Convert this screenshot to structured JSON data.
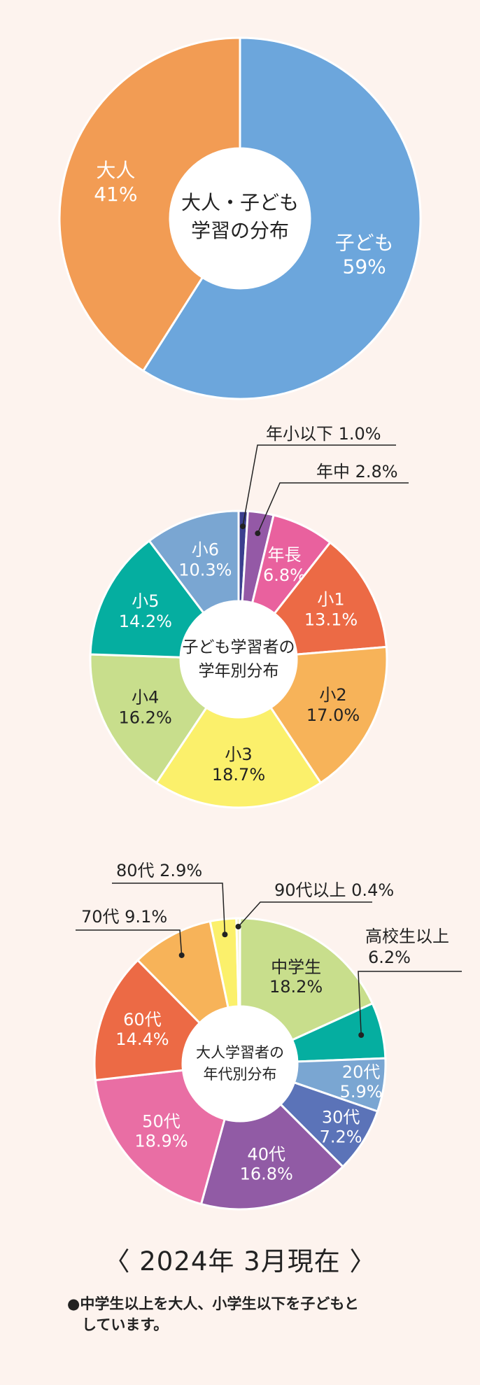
{
  "chart_data": [
    {
      "type": "pie",
      "title": "大人・子ども 学習の分布",
      "title_lines": [
        "大人・子ども",
        "学習の分布"
      ],
      "slices": [
        {
          "label": "子ども",
          "value": 59,
          "value_text": "59%",
          "color": "#6ca6dc"
        },
        {
          "label": "大人",
          "value": 41,
          "value_text": "41%",
          "color": "#f29c54"
        }
      ]
    },
    {
      "type": "pie",
      "title": "子ども学習者の 学年別分布",
      "title_lines": [
        "子ども学習者の",
        "学年別分布"
      ],
      "slices": [
        {
          "label": "年小以下",
          "value": 1.0,
          "value_text": "1.0%",
          "color": "#3b3f8f"
        },
        {
          "label": "年中",
          "value": 2.8,
          "value_text": "2.8%",
          "color": "#9459a6"
        },
        {
          "label": "年長",
          "value": 6.8,
          "value_text": "6.8%",
          "color": "#e9619e"
        },
        {
          "label": "小1",
          "value": 13.1,
          "value_text": "13.1%",
          "color": "#ec6a45"
        },
        {
          "label": "小2",
          "value": 17.0,
          "value_text": "17.0%",
          "color": "#f7b359"
        },
        {
          "label": "小3",
          "value": 18.7,
          "value_text": "18.7%",
          "color": "#fbf06b"
        },
        {
          "label": "小4",
          "value": 16.2,
          "value_text": "16.2%",
          "color": "#c8de8c"
        },
        {
          "label": "小5",
          "value": 14.2,
          "value_text": "14.2%",
          "color": "#05aea0"
        },
        {
          "label": "小6",
          "value": 10.3,
          "value_text": "10.3%",
          "color": "#7aa6d2"
        }
      ]
    },
    {
      "type": "pie",
      "title": "大人学習者の 年代別分布",
      "title_lines": [
        "大人学習者の",
        "年代別分布"
      ],
      "slices": [
        {
          "label": "中学生",
          "value": 18.2,
          "value_text": "18.2%",
          "color": "#c8de8c"
        },
        {
          "label": "高校生以上",
          "value": 6.2,
          "value_text": "6.2%",
          "color": "#05aea0"
        },
        {
          "label": "20代",
          "value": 5.9,
          "value_text": "5.9%",
          "color": "#7aa6d2"
        },
        {
          "label": "30代",
          "value": 7.2,
          "value_text": "7.2%",
          "color": "#5b73b8"
        },
        {
          "label": "40代",
          "value": 16.8,
          "value_text": "16.8%",
          "color": "#915ba5"
        },
        {
          "label": "50代",
          "value": 18.9,
          "value_text": "18.9%",
          "color": "#e96ea4"
        },
        {
          "label": "60代",
          "value": 14.4,
          "value_text": "14.4%",
          "color": "#ec6a45"
        },
        {
          "label": "70代",
          "value": 9.1,
          "value_text": "9.1%",
          "color": "#f7b359"
        },
        {
          "label": "80代",
          "value": 2.9,
          "value_text": "2.9%",
          "color": "#fbf06b"
        },
        {
          "label": "90代以上",
          "value": 0.4,
          "value_text": "0.4%",
          "color": "#f4f0c8"
        }
      ]
    }
  ],
  "as_of": "〈 2024年 3月現在 〉",
  "note": {
    "bullet": "●",
    "line1": "中学生以上を大人、小学生以下を子どもと",
    "line2": "しています。"
  }
}
